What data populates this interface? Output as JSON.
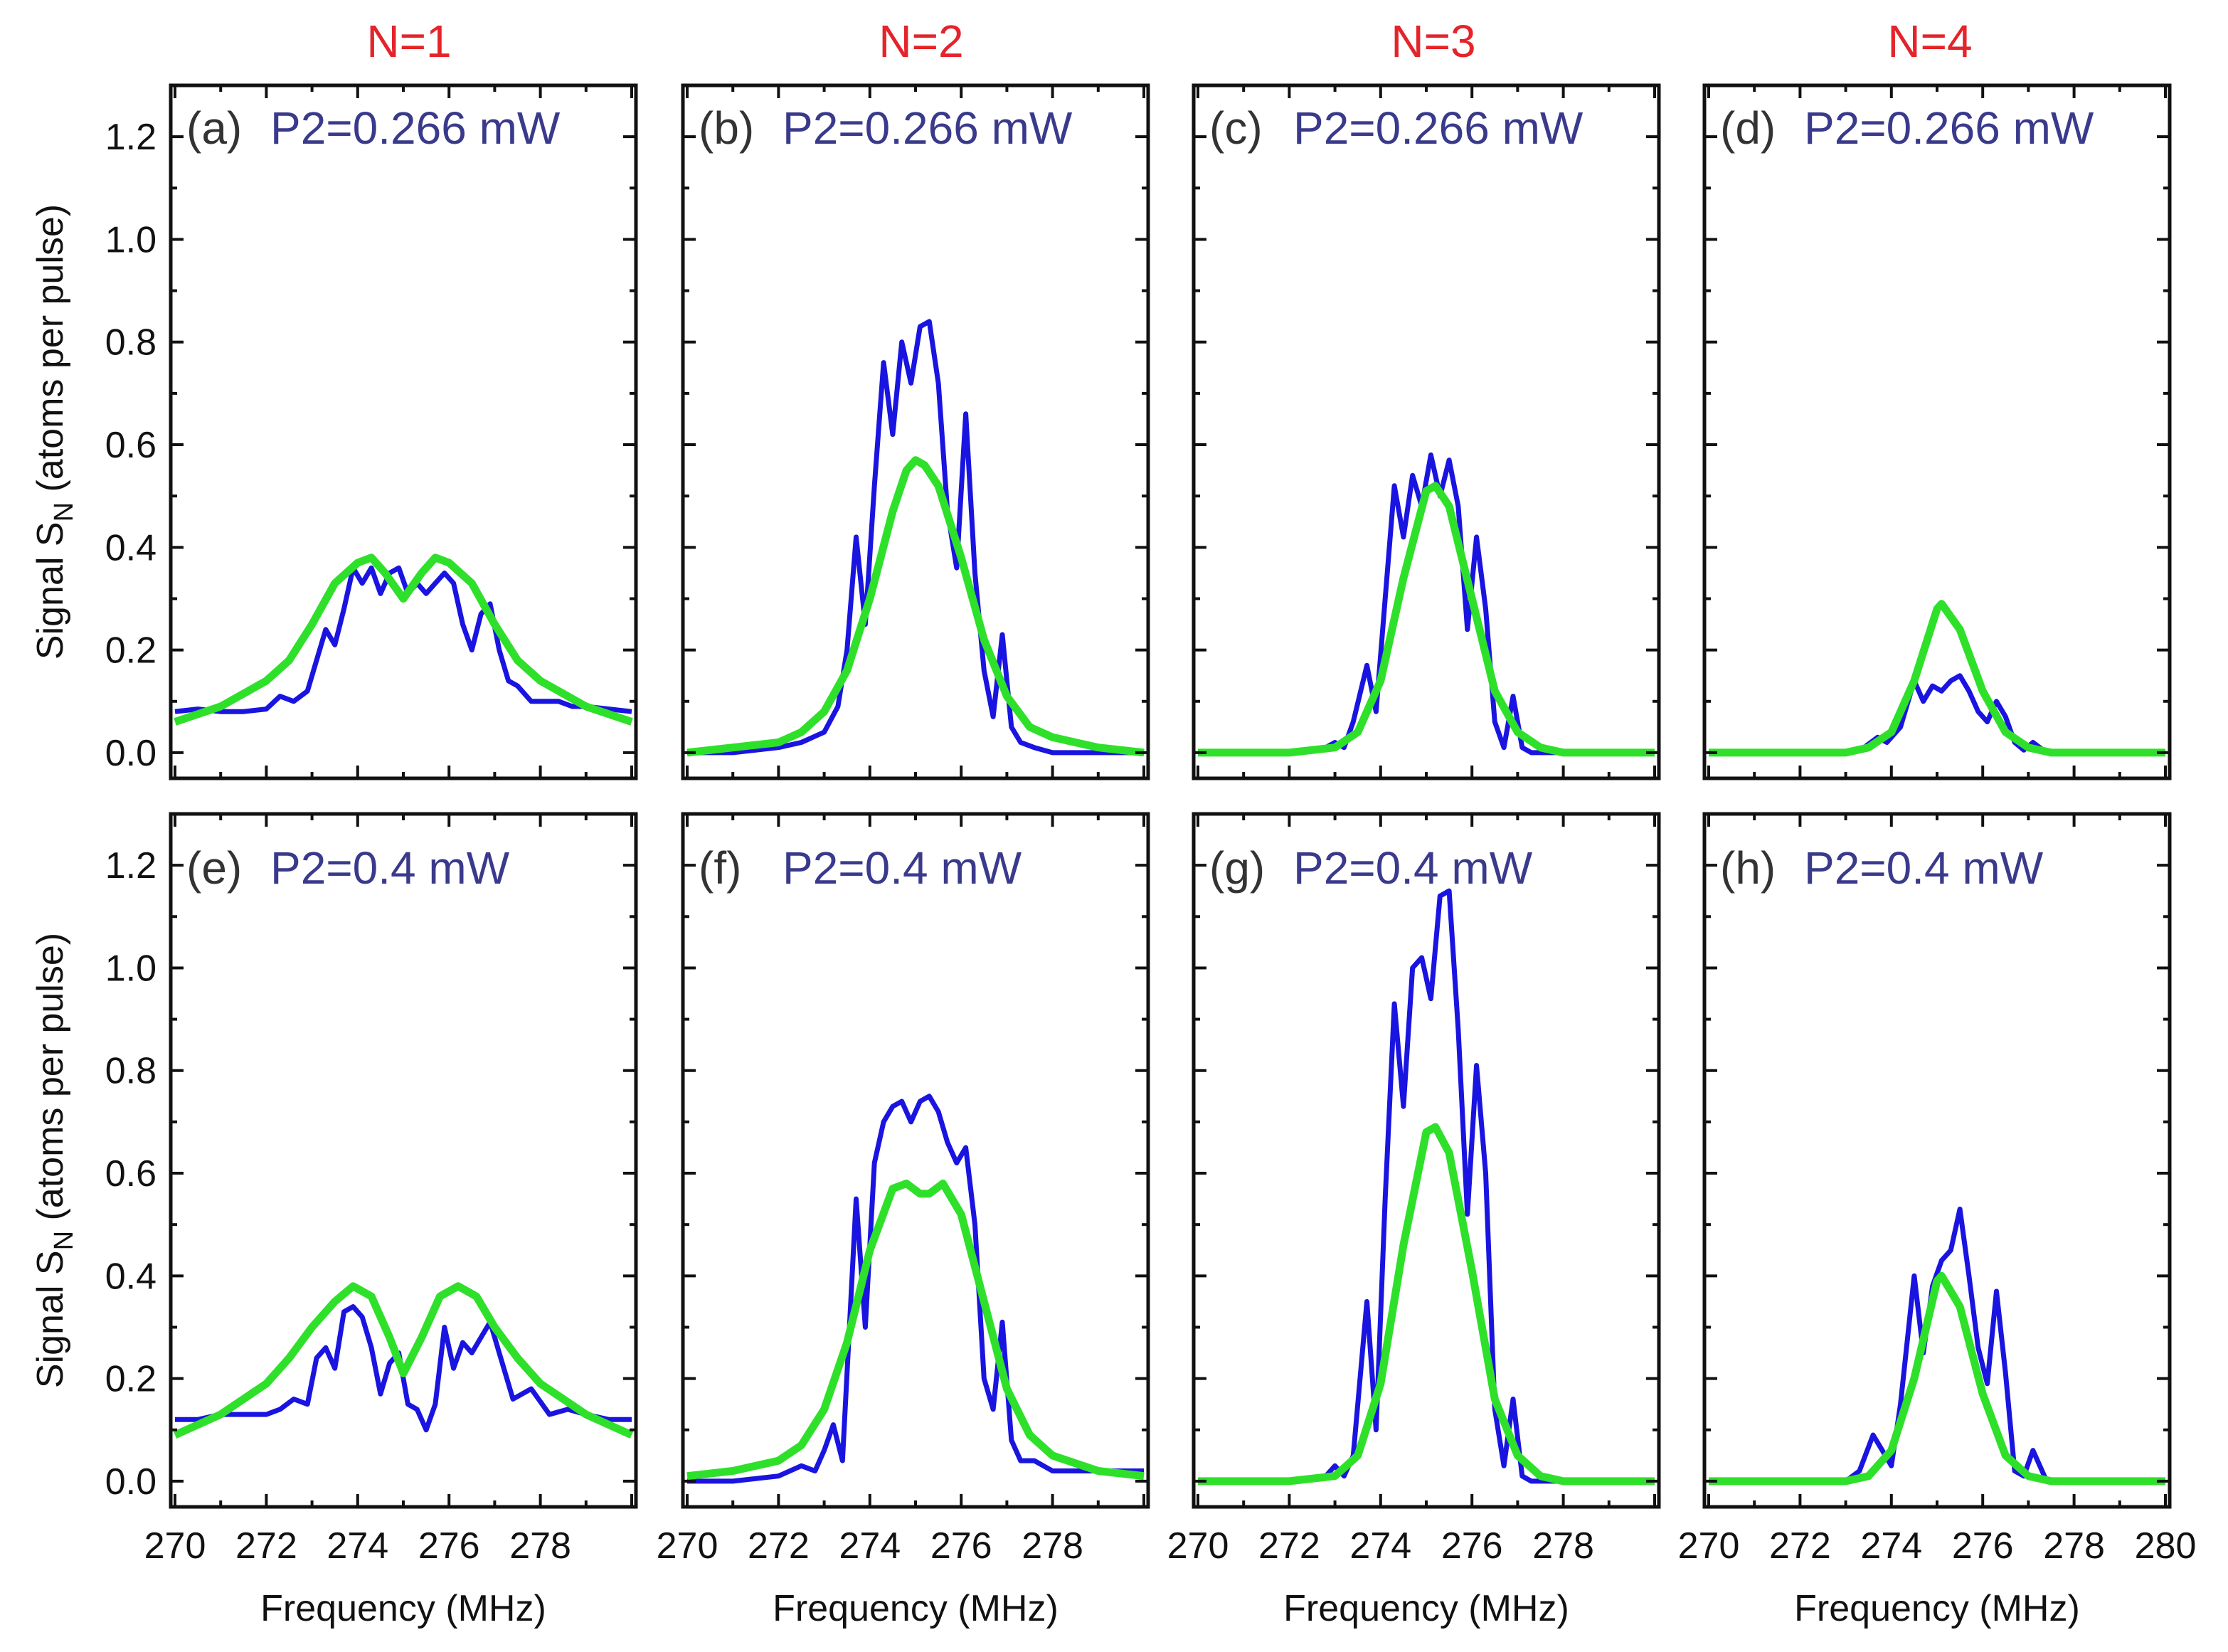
{
  "figure": {
    "column_titles": [
      "N=1",
      "N=2",
      "N=3",
      "N=4"
    ],
    "y_axis_title": "Signal S",
    "y_axis_subscript": "N",
    "y_axis_title_suffix": " (atoms per pulse)",
    "x_axis_title": "Frequency (MHz)",
    "x_tick_labels": [
      "270",
      "272",
      "274",
      "276",
      "278"
    ],
    "x_tick_label_last": "280",
    "y_tick_labels": [
      "0.0",
      "0.2",
      "0.4",
      "0.6",
      "0.8",
      "1.0",
      "1.2"
    ]
  },
  "colors": {
    "title_red": "#e5232a",
    "power_text": "#3a3a8c",
    "data_blue": "#1a14e0",
    "fit_green": "#2ee02a"
  },
  "chart_data": [
    {
      "type": "line",
      "panel": "(a)",
      "label": "P2=0.266 mW",
      "title": "N=1",
      "xlabel": "",
      "ylabel": "Signal S_N (atoms per pulse)",
      "xlim": [
        270,
        280
      ],
      "ylim": [
        -0.05,
        1.3
      ],
      "series": [
        {
          "name": "data",
          "x": [
            270,
            270.5,
            271,
            271.5,
            272,
            272.3,
            272.6,
            272.9,
            273.1,
            273.3,
            273.5,
            273.7,
            273.9,
            274.1,
            274.3,
            274.5,
            274.7,
            274.9,
            275.1,
            275.3,
            275.5,
            275.7,
            275.9,
            276.1,
            276.3,
            276.5,
            276.7,
            276.9,
            277.1,
            277.3,
            277.5,
            277.8,
            278.1,
            278.4,
            278.7,
            279,
            279.5,
            280
          ],
          "y": [
            0.08,
            0.085,
            0.08,
            0.08,
            0.085,
            0.11,
            0.1,
            0.12,
            0.18,
            0.24,
            0.21,
            0.28,
            0.36,
            0.33,
            0.36,
            0.31,
            0.35,
            0.36,
            0.31,
            0.33,
            0.31,
            0.33,
            0.35,
            0.33,
            0.25,
            0.2,
            0.27,
            0.29,
            0.2,
            0.14,
            0.13,
            0.1,
            0.1,
            0.1,
            0.09,
            0.09,
            0.085,
            0.08
          ]
        },
        {
          "name": "fit",
          "x": [
            270,
            271,
            272,
            272.5,
            273,
            273.5,
            274,
            274.3,
            274.6,
            275,
            275.4,
            275.7,
            276,
            276.5,
            277,
            277.5,
            278,
            279,
            280
          ],
          "y": [
            0.06,
            0.09,
            0.14,
            0.18,
            0.25,
            0.33,
            0.37,
            0.38,
            0.35,
            0.3,
            0.35,
            0.38,
            0.37,
            0.33,
            0.25,
            0.18,
            0.14,
            0.09,
            0.06
          ]
        }
      ]
    },
    {
      "type": "line",
      "panel": "(b)",
      "label": "P2=0.266 mW",
      "title": "N=2",
      "xlabel": "",
      "ylabel": "",
      "xlim": [
        270,
        280
      ],
      "ylim": [
        -0.05,
        1.3
      ],
      "series": [
        {
          "name": "data",
          "x": [
            270,
            271,
            272,
            272.5,
            273,
            273.3,
            273.5,
            273.7,
            273.9,
            274.1,
            274.3,
            274.5,
            274.7,
            274.9,
            275.1,
            275.3,
            275.5,
            275.7,
            275.9,
            276.1,
            276.3,
            276.5,
            276.7,
            276.9,
            277.1,
            277.3,
            277.6,
            278,
            279,
            280
          ],
          "y": [
            0.0,
            0.0,
            0.01,
            0.02,
            0.04,
            0.09,
            0.2,
            0.42,
            0.25,
            0.52,
            0.76,
            0.62,
            0.8,
            0.72,
            0.83,
            0.84,
            0.72,
            0.47,
            0.36,
            0.66,
            0.35,
            0.16,
            0.07,
            0.23,
            0.05,
            0.02,
            0.01,
            0.0,
            0.0,
            0.0
          ]
        },
        {
          "name": "fit",
          "x": [
            270,
            271,
            272,
            272.5,
            273,
            273.5,
            274,
            274.5,
            274.8,
            275,
            275.2,
            275.5,
            276,
            276.5,
            277,
            277.5,
            278,
            279,
            280
          ],
          "y": [
            0.0,
            0.01,
            0.02,
            0.04,
            0.08,
            0.16,
            0.3,
            0.47,
            0.55,
            0.57,
            0.56,
            0.52,
            0.38,
            0.22,
            0.11,
            0.05,
            0.03,
            0.01,
            0.0
          ]
        }
      ]
    },
    {
      "type": "line",
      "panel": "(c)",
      "label": "P2=0.266 mW",
      "title": "N=3",
      "xlabel": "",
      "ylabel": "",
      "xlim": [
        270,
        280
      ],
      "ylim": [
        -0.05,
        1.3
      ],
      "series": [
        {
          "name": "data",
          "x": [
            270,
            271,
            272,
            272.8,
            273,
            273.2,
            273.4,
            273.7,
            273.9,
            274.1,
            274.3,
            274.5,
            274.7,
            274.9,
            275.1,
            275.3,
            275.5,
            275.7,
            275.9,
            276.1,
            276.3,
            276.5,
            276.7,
            276.9,
            277.1,
            277.3,
            277.6,
            278,
            279,
            280
          ],
          "y": [
            0.0,
            0.0,
            0.0,
            0.01,
            0.02,
            0.01,
            0.06,
            0.17,
            0.08,
            0.3,
            0.52,
            0.42,
            0.54,
            0.48,
            0.58,
            0.5,
            0.57,
            0.48,
            0.24,
            0.42,
            0.28,
            0.06,
            0.01,
            0.11,
            0.01,
            0.0,
            0.0,
            0.0,
            0.0,
            0.0
          ]
        },
        {
          "name": "fit",
          "x": [
            270,
            272,
            273,
            273.5,
            274,
            274.5,
            275,
            275.2,
            275.5,
            276,
            276.5,
            277,
            277.5,
            278,
            280
          ],
          "y": [
            0.0,
            0.0,
            0.01,
            0.04,
            0.14,
            0.34,
            0.51,
            0.52,
            0.48,
            0.3,
            0.12,
            0.04,
            0.01,
            0.0,
            0.0
          ]
        }
      ]
    },
    {
      "type": "line",
      "panel": "(d)",
      "label": "P2=0.266 mW",
      "title": "N=4",
      "xlabel": "",
      "ylabel": "",
      "xlim": [
        270,
        280
      ],
      "ylim": [
        -0.05,
        1.3
      ],
      "series": [
        {
          "name": "data",
          "x": [
            270,
            272,
            273,
            273.4,
            273.7,
            273.9,
            274.2,
            274.5,
            274.7,
            274.9,
            275.1,
            275.3,
            275.5,
            275.7,
            275.9,
            276.1,
            276.3,
            276.5,
            276.7,
            276.9,
            277.1,
            277.4,
            278,
            280
          ],
          "y": [
            0.0,
            0.0,
            0.0,
            0.01,
            0.03,
            0.02,
            0.05,
            0.14,
            0.1,
            0.13,
            0.12,
            0.14,
            0.15,
            0.12,
            0.08,
            0.06,
            0.1,
            0.07,
            0.02,
            0.005,
            0.02,
            0.0,
            0.0,
            0.0
          ]
        },
        {
          "name": "fit",
          "x": [
            270,
            273,
            273.5,
            274,
            274.5,
            275,
            275.1,
            275.5,
            276,
            276.5,
            277,
            277.5,
            280
          ],
          "y": [
            0.0,
            0.0,
            0.01,
            0.04,
            0.14,
            0.28,
            0.29,
            0.24,
            0.12,
            0.04,
            0.01,
            0.0,
            0.0
          ]
        }
      ]
    },
    {
      "type": "line",
      "panel": "(e)",
      "label": "P2=0.4 mW",
      "title": "",
      "xlabel": "Frequency (MHz)",
      "ylabel": "Signal S_N (atoms per pulse)",
      "xlim": [
        270,
        280
      ],
      "ylim": [
        -0.05,
        1.3
      ],
      "series": [
        {
          "name": "data",
          "x": [
            270,
            270.5,
            271,
            271.5,
            272,
            272.3,
            272.6,
            272.9,
            273.1,
            273.3,
            273.5,
            273.7,
            273.9,
            274.1,
            274.3,
            274.5,
            274.7,
            274.9,
            275.1,
            275.3,
            275.5,
            275.7,
            275.9,
            276.1,
            276.3,
            276.5,
            276.7,
            276.9,
            277.1,
            277.4,
            277.8,
            278.2,
            278.6,
            279,
            279.5,
            280
          ],
          "y": [
            0.12,
            0.12,
            0.13,
            0.13,
            0.13,
            0.14,
            0.16,
            0.15,
            0.24,
            0.26,
            0.22,
            0.33,
            0.34,
            0.32,
            0.26,
            0.17,
            0.23,
            0.25,
            0.15,
            0.14,
            0.1,
            0.15,
            0.3,
            0.22,
            0.27,
            0.25,
            0.28,
            0.31,
            0.25,
            0.16,
            0.18,
            0.13,
            0.14,
            0.13,
            0.12,
            0.12
          ]
        },
        {
          "name": "fit",
          "x": [
            270,
            271,
            272,
            272.5,
            273,
            273.5,
            273.9,
            274.3,
            274.7,
            275,
            275.4,
            275.8,
            276.2,
            276.6,
            277,
            277.5,
            278,
            279,
            280
          ],
          "y": [
            0.09,
            0.13,
            0.19,
            0.24,
            0.3,
            0.35,
            0.38,
            0.36,
            0.28,
            0.21,
            0.28,
            0.36,
            0.38,
            0.36,
            0.3,
            0.24,
            0.19,
            0.13,
            0.09
          ]
        }
      ]
    },
    {
      "type": "line",
      "panel": "(f)",
      "label": "P2=0.4 mW",
      "title": "",
      "xlabel": "Frequency (MHz)",
      "ylabel": "",
      "xlim": [
        270,
        280
      ],
      "ylim": [
        -0.05,
        1.3
      ],
      "series": [
        {
          "name": "data",
          "x": [
            270,
            271,
            272,
            272.5,
            272.8,
            273,
            273.2,
            273.4,
            273.7,
            273.9,
            274.1,
            274.3,
            274.5,
            274.7,
            274.9,
            275.1,
            275.3,
            275.5,
            275.7,
            275.9,
            276.1,
            276.3,
            276.5,
            276.7,
            276.9,
            277.1,
            277.3,
            277.6,
            278,
            279,
            280
          ],
          "y": [
            0.0,
            0.0,
            0.01,
            0.03,
            0.02,
            0.06,
            0.11,
            0.04,
            0.55,
            0.3,
            0.62,
            0.7,
            0.73,
            0.74,
            0.7,
            0.74,
            0.75,
            0.72,
            0.66,
            0.62,
            0.65,
            0.5,
            0.2,
            0.14,
            0.31,
            0.08,
            0.04,
            0.04,
            0.02,
            0.02,
            0.02
          ]
        },
        {
          "name": "fit",
          "x": [
            270,
            271,
            272,
            272.5,
            273,
            273.5,
            274,
            274.5,
            274.8,
            275.1,
            275.3,
            275.6,
            276,
            276.5,
            277,
            277.5,
            278,
            279,
            280
          ],
          "y": [
            0.01,
            0.02,
            0.04,
            0.07,
            0.14,
            0.27,
            0.45,
            0.57,
            0.58,
            0.56,
            0.56,
            0.58,
            0.52,
            0.35,
            0.18,
            0.09,
            0.05,
            0.02,
            0.01
          ]
        }
      ]
    },
    {
      "type": "line",
      "panel": "(g)",
      "label": "P2=0.4 mW",
      "title": "",
      "xlabel": "Frequency (MHz)",
      "ylabel": "",
      "xlim": [
        270,
        280
      ],
      "ylim": [
        -0.05,
        1.3
      ],
      "series": [
        {
          "name": "data",
          "x": [
            270,
            271,
            272,
            272.8,
            273,
            273.2,
            273.4,
            273.7,
            273.9,
            274.1,
            274.3,
            274.5,
            274.7,
            274.9,
            275.1,
            275.3,
            275.5,
            275.7,
            275.9,
            276.1,
            276.3,
            276.5,
            276.7,
            276.9,
            277.1,
            277.3,
            277.6,
            278,
            279,
            280
          ],
          "y": [
            0.0,
            0.0,
            0.0,
            0.01,
            0.03,
            0.01,
            0.05,
            0.35,
            0.1,
            0.55,
            0.93,
            0.73,
            1.0,
            1.02,
            0.94,
            1.14,
            1.15,
            0.88,
            0.52,
            0.81,
            0.6,
            0.14,
            0.03,
            0.16,
            0.01,
            0.0,
            0.0,
            0.0,
            0.0,
            0.0
          ]
        },
        {
          "name": "fit",
          "x": [
            270,
            272,
            273,
            273.5,
            274,
            274.5,
            275,
            275.2,
            275.5,
            276,
            276.5,
            277,
            277.5,
            278,
            280
          ],
          "y": [
            0.0,
            0.0,
            0.01,
            0.05,
            0.19,
            0.46,
            0.68,
            0.69,
            0.64,
            0.41,
            0.16,
            0.05,
            0.01,
            0.0,
            0.0
          ]
        }
      ]
    },
    {
      "type": "line",
      "panel": "(h)",
      "label": "P2=0.4 mW",
      "title": "",
      "xlabel": "Frequency (MHz)",
      "ylabel": "",
      "xlim": [
        270,
        280
      ],
      "ylim": [
        -0.05,
        1.3
      ],
      "series": [
        {
          "name": "data",
          "x": [
            270,
            272,
            273,
            273.3,
            273.6,
            273.8,
            274,
            274.2,
            274.5,
            274.7,
            274.9,
            275.1,
            275.3,
            275.5,
            275.7,
            275.9,
            276.1,
            276.3,
            276.5,
            276.7,
            276.9,
            277.1,
            277.4,
            278,
            280
          ],
          "y": [
            0.0,
            0.0,
            0.0,
            0.02,
            0.09,
            0.06,
            0.03,
            0.15,
            0.4,
            0.25,
            0.38,
            0.43,
            0.45,
            0.53,
            0.4,
            0.26,
            0.19,
            0.37,
            0.21,
            0.02,
            0.01,
            0.06,
            0.0,
            0.0,
            0.0
          ]
        },
        {
          "name": "fit",
          "x": [
            270,
            273,
            273.5,
            274,
            274.5,
            275,
            275.1,
            275.5,
            276,
            276.5,
            277,
            277.5,
            280
          ],
          "y": [
            0.0,
            0.0,
            0.01,
            0.06,
            0.2,
            0.39,
            0.4,
            0.34,
            0.17,
            0.05,
            0.01,
            0.0,
            0.0
          ]
        }
      ]
    }
  ]
}
